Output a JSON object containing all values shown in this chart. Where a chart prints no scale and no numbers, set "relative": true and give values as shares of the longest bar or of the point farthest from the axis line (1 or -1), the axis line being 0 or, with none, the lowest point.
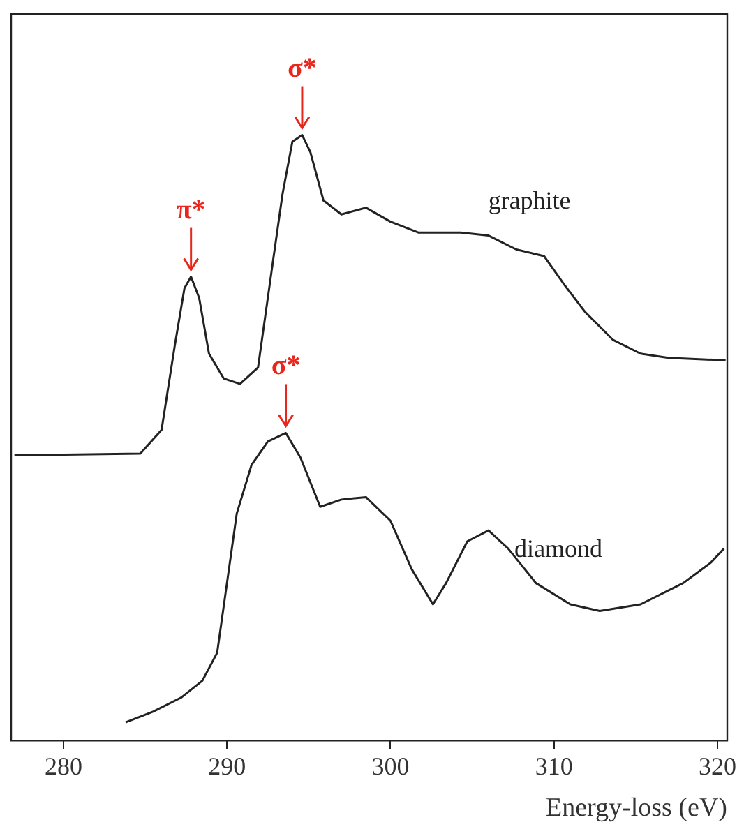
{
  "chart_data": {
    "type": "line",
    "relative": true,
    "xlabel": "Energy-loss (eV)",
    "xlim": [
      276.8,
      320.6
    ],
    "xticks": [
      280,
      290,
      300,
      310,
      320
    ],
    "grid": false,
    "legend": false,
    "marker": "none",
    "line_style": "solid",
    "series": [
      {
        "name": "graphite",
        "color": "#222222",
        "x": [
          277.0,
          284.7,
          286.0,
          286.8,
          287.4,
          287.8,
          288.3,
          288.9,
          289.8,
          290.8,
          291.9,
          292.8,
          293.4,
          294.0,
          294.6,
          295.1,
          295.9,
          297.0,
          298.5,
          300.0,
          301.7,
          304.3,
          306.0,
          307.7,
          309.4,
          310.6,
          311.9,
          313.6,
          315.3,
          317.0,
          320.5
        ],
        "values": [
          0.471,
          0.474,
          0.513,
          0.651,
          0.747,
          0.766,
          0.731,
          0.639,
          0.598,
          0.589,
          0.616,
          0.789,
          0.903,
          0.989,
          1,
          0.972,
          0.892,
          0.869,
          0.88,
          0.857,
          0.839,
          0.839,
          0.834,
          0.811,
          0.8,
          0.754,
          0.708,
          0.662,
          0.639,
          0.632,
          0.628
        ]
      },
      {
        "name": "diamond",
        "color": "#222222",
        "x": [
          283.8,
          285.5,
          287.2,
          288.5,
          289.4,
          290.0,
          290.6,
          291.5,
          292.5,
          293.6,
          294.5,
          295.7,
          297.0,
          298.5,
          300.0,
          301.3,
          302.6,
          303.4,
          304.7,
          306.0,
          307.2,
          308.9,
          311.0,
          312.8,
          315.3,
          317.9,
          319.6,
          320.4
        ],
        "values": [
          0.03,
          0.048,
          0.071,
          0.099,
          0.145,
          0.26,
          0.375,
          0.455,
          0.494,
          0.508,
          0.467,
          0.386,
          0.398,
          0.402,
          0.363,
          0.283,
          0.225,
          0.26,
          0.329,
          0.347,
          0.317,
          0.26,
          0.225,
          0.214,
          0.225,
          0.26,
          0.294,
          0.317
        ]
      }
    ],
    "annotations": [
      {
        "text": "π*",
        "x": 287.8,
        "y": 0.766
      },
      {
        "text": "σ*",
        "x": 294.6,
        "y": 1
      },
      {
        "text": "σ*",
        "x": 293.6,
        "y": 0.508
      }
    ]
  }
}
